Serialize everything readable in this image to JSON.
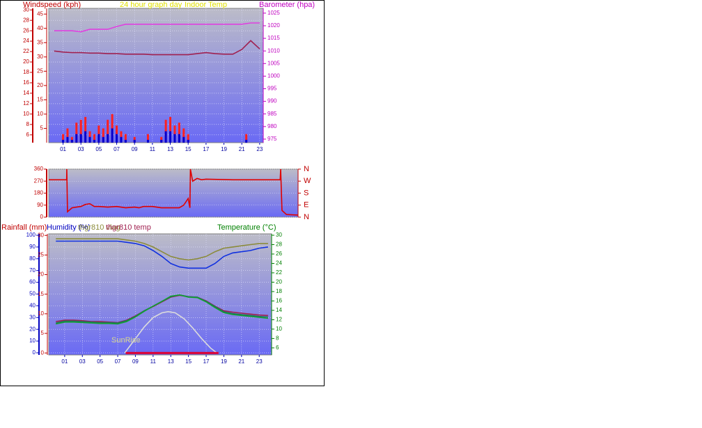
{
  "chart_data": [
    {
      "type": "combo",
      "title": "24 hour graph day",
      "xlim": [
        -0.6,
        23.4
      ],
      "xticks": [
        {
          "value": 1,
          "label": "01"
        },
        {
          "value": 3,
          "label": "03"
        },
        {
          "value": 5,
          "label": "05"
        },
        {
          "value": 7,
          "label": "07"
        },
        {
          "value": 9,
          "label": "09"
        },
        {
          "value": 11,
          "label": "11"
        },
        {
          "value": 13,
          "label": "13"
        },
        {
          "value": 15,
          "label": "15"
        },
        {
          "value": 17,
          "label": "17"
        },
        {
          "value": 19,
          "label": "19"
        },
        {
          "value": 21,
          "label": "21"
        },
        {
          "value": 23,
          "label": "23"
        }
      ],
      "grid": true,
      "axes": [
        {
          "label": "Windspeed (kph)",
          "color": "#c00000",
          "side": "left",
          "ylim": [
            4.5,
            30.3
          ],
          "yticks": [
            6,
            8,
            10,
            12,
            14,
            16,
            18,
            20,
            22,
            24,
            26,
            28,
            30
          ]
        },
        {
          "color": "#c00000",
          "side": "left",
          "ylim": [
            0,
            47
          ],
          "yticks": [
            5,
            10,
            15,
            20,
            25,
            30,
            35,
            40,
            45
          ]
        },
        {
          "label": "Barometer (hpa)",
          "color": "#c000c0",
          "side": "right",
          "ylim": [
            973.6,
            1026.9
          ],
          "yticks": [
            975,
            980,
            985,
            990,
            995,
            1000,
            1005,
            1010,
            1015,
            1020,
            1025
          ]
        }
      ],
      "series": [
        {
          "type": "bar",
          "color": "#ff2020",
          "axis": 1,
          "x": [
            0,
            0.5,
            1,
            1.5,
            2,
            2.5,
            3,
            3.5,
            4,
            4.5,
            5,
            5.5,
            6,
            6.5,
            7,
            7.5,
            8,
            8.5,
            9,
            9.5,
            10,
            10.5,
            11,
            11.5,
            12,
            12.5,
            13,
            13.5,
            14,
            14.5,
            15,
            15.5,
            16,
            16.5,
            17,
            17.5,
            18,
            18.5,
            19,
            19.5,
            20,
            20.5,
            21,
            21.5,
            22,
            22.5,
            23
          ],
          "values": [
            0,
            0,
            3,
            5,
            2,
            7,
            8,
            9,
            4,
            3,
            6,
            5,
            8,
            10,
            6,
            4,
            3,
            0,
            2,
            0,
            0,
            3,
            0,
            0,
            2,
            8,
            9,
            6,
            7,
            5,
            3,
            0,
            0,
            0,
            0,
            0,
            0,
            0,
            0,
            0,
            0,
            0,
            0,
            3,
            0,
            0,
            0
          ]
        },
        {
          "type": "bar",
          "color": "#0000d0",
          "axis": 1,
          "x": [
            0,
            0.5,
            1,
            1.5,
            2,
            2.5,
            3,
            3.5,
            4,
            4.5,
            5,
            5.5,
            6,
            6.5,
            7,
            7.5,
            8,
            8.5,
            9,
            9.5,
            10,
            10.5,
            11,
            11.5,
            12,
            12.5,
            13,
            13.5,
            14,
            14.5,
            15,
            15.5,
            16,
            16.5,
            17,
            17.5,
            18,
            18.5,
            19,
            19.5,
            20,
            20.5,
            21,
            21.5,
            22,
            22.5,
            23
          ],
          "values": [
            0,
            0,
            1,
            2,
            1,
            3,
            3,
            4,
            2,
            1,
            3,
            2,
            3,
            5,
            3,
            2,
            1,
            0,
            1,
            0,
            0,
            1,
            0,
            0,
            1,
            4,
            4,
            3,
            3,
            2,
            1,
            0,
            0,
            0,
            0,
            0,
            0,
            0,
            0,
            0,
            0,
            0,
            0,
            1,
            0,
            0,
            0
          ]
        },
        {
          "name": "Indoor Temp",
          "type": "line",
          "color": "#a02050",
          "axis": 0,
          "x": [
            0,
            1,
            2,
            3,
            4,
            5,
            6,
            7,
            8,
            9,
            10,
            11,
            12,
            13,
            14,
            15,
            16,
            17,
            18,
            19,
            20,
            21,
            22,
            23
          ],
          "values": [
            22.1,
            21.9,
            21.8,
            21.8,
            21.7,
            21.7,
            21.6,
            21.6,
            21.5,
            21.5,
            21.5,
            21.4,
            21.4,
            21.4,
            21.4,
            21.4,
            21.6,
            21.8,
            21.6,
            21.5,
            21.5,
            22.4,
            24.1,
            22.5
          ]
        },
        {
          "type": "line",
          "color": "#e040e0",
          "axis": 2,
          "x": [
            0,
            1,
            2,
            3,
            4,
            5,
            6,
            7,
            8,
            9,
            10,
            11,
            12,
            13,
            14,
            15,
            16,
            17,
            18,
            19,
            20,
            21,
            22,
            23
          ],
          "values": [
            1018,
            1018,
            1018,
            1017.6,
            1018.6,
            1018.6,
            1018.6,
            1019.7,
            1020.6,
            1020.6,
            1020.6,
            1020.6,
            1020.6,
            1020.6,
            1020.6,
            1020.6,
            1020.6,
            1020.6,
            1020.6,
            1020.6,
            1020.6,
            1020.6,
            1021.1,
            1021.1
          ]
        }
      ]
    },
    {
      "type": "combo",
      "xlim": [
        -0.6,
        27.3
      ],
      "grid": true,
      "axes": [
        {
          "color": "#c00000",
          "side": "left",
          "ylim": [
            0,
            360
          ],
          "yticks": [
            0,
            90,
            180,
            270,
            360
          ]
        },
        {
          "color": "#c00000",
          "side": "right",
          "ylim": [
            0,
            360
          ],
          "yticks": [
            {
              "value": 0,
              "label": "N"
            },
            {
              "value": 90,
              "label": "E"
            },
            {
              "value": 180,
              "label": "S"
            },
            {
              "value": 270,
              "label": "W"
            },
            {
              "value": 360,
              "label": "N"
            }
          ]
        }
      ],
      "series": [
        {
          "type": "line",
          "color": "#e00000",
          "axis": 0,
          "x": [
            -0.6,
            1.4,
            1.42,
            1.5,
            2,
            2.5,
            3,
            3.5,
            4,
            4.5,
            5,
            6,
            7,
            8,
            9,
            9.5,
            10,
            11,
            12,
            13,
            14,
            14.5,
            15,
            15.2,
            15.25,
            15.5,
            16,
            16.5,
            17,
            20,
            23,
            25.3,
            25.35,
            25.5,
            26,
            27.3
          ],
          "values": [
            280,
            280,
            360,
            40,
            70,
            75,
            80,
            95,
            100,
            80,
            80,
            75,
            80,
            70,
            75,
            70,
            80,
            80,
            70,
            70,
            70,
            90,
            140,
            70,
            360,
            270,
            290,
            280,
            285,
            280,
            280,
            280,
            360,
            50,
            20,
            15
          ]
        }
      ]
    },
    {
      "type": "combo",
      "annotation": "SunRise",
      "xlim": [
        -0.8,
        24.4
      ],
      "xticks": [
        {
          "value": 1,
          "label": "01"
        },
        {
          "value": 3,
          "label": "03"
        },
        {
          "value": 5,
          "label": "05"
        },
        {
          "value": 7,
          "label": "07"
        },
        {
          "value": 9,
          "label": "09"
        },
        {
          "value": 11,
          "label": "11"
        },
        {
          "value": 13,
          "label": "13"
        },
        {
          "value": 15,
          "label": "15"
        },
        {
          "value": 17,
          "label": "17"
        },
        {
          "value": 19,
          "label": "19"
        },
        {
          "value": 21,
          "label": "21"
        },
        {
          "value": 23,
          "label": "23"
        }
      ],
      "grid": true,
      "axes": [
        {
          "label": "Humidity (%)",
          "color": "#0000c0",
          "side": "left",
          "ylim": [
            -1.8,
            101.2
          ],
          "yticks": [
            0,
            10,
            20,
            30,
            40,
            50,
            60,
            70,
            80,
            90,
            100
          ]
        },
        {
          "label": "Rainfall (mm)",
          "color": "#c00000",
          "side": "left",
          "ylim": [
            -0.5,
            30.4
          ],
          "yticks": [
            0,
            5,
            10,
            15,
            20,
            25,
            30
          ]
        },
        {
          "label": "Temperature (°C)",
          "color": "#008000",
          "side": "right",
          "ylim": [
            4.5,
            30.3
          ],
          "yticks": [
            6,
            8,
            10,
            12,
            14,
            16,
            18,
            20,
            22,
            24,
            26,
            28,
            30
          ]
        }
      ],
      "series": [
        {
          "name": "thgr810 vlag",
          "type": "line",
          "color": "#8b8b3a",
          "axis": 0,
          "x": [
            0,
            1,
            2,
            3,
            4,
            5,
            6,
            7,
            8,
            9,
            10,
            11,
            12,
            13,
            14,
            15,
            16,
            17,
            18,
            19,
            20,
            21,
            22,
            23,
            24
          ],
          "values": [
            97,
            97,
            97,
            97,
            97,
            97,
            97,
            97,
            96,
            95,
            93,
            90,
            86,
            82,
            80,
            79,
            80,
            82,
            86,
            89,
            90,
            91,
            92,
            93,
            93
          ]
        },
        {
          "type": "line",
          "color": "#1030e0",
          "axis": 0,
          "x": [
            0,
            1,
            2,
            3,
            4,
            5,
            6,
            7,
            8,
            9,
            10,
            11,
            12,
            13,
            14,
            15,
            16,
            17,
            18,
            19,
            20,
            21,
            22,
            23,
            24
          ],
          "values": [
            95,
            95,
            95,
            95,
            95,
            95,
            95,
            95,
            94,
            93,
            91,
            87,
            82,
            76,
            73,
            72,
            72,
            72,
            76,
            82,
            85,
            86,
            87,
            89,
            90
          ]
        },
        {
          "name": "thgr810 temp",
          "type": "line",
          "color": "#a02050",
          "axis": 2,
          "x": [
            0,
            1,
            2,
            3,
            4,
            5,
            6,
            7,
            8,
            9,
            10,
            11,
            12,
            13,
            14,
            15,
            16,
            17,
            18,
            19,
            20,
            21,
            22,
            23,
            24
          ],
          "values": [
            11.6,
            11.9,
            11.9,
            11.8,
            11.6,
            11.6,
            11.5,
            11.4,
            11.9,
            12.8,
            13.9,
            14.8,
            15.8,
            16.8,
            17.2,
            16.9,
            16.8,
            16.0,
            14.9,
            13.9,
            13.6,
            13.4,
            13.2,
            13.0,
            12.9
          ]
        },
        {
          "type": "line",
          "color": "#207060",
          "axis": 2,
          "x": [
            0,
            1,
            2,
            3,
            4,
            5,
            6,
            7,
            8,
            9,
            10,
            11,
            12,
            13,
            14,
            15,
            16,
            17,
            18,
            19,
            20,
            21,
            22,
            23,
            24
          ],
          "values": [
            11.3,
            11.7,
            11.7,
            11.6,
            11.5,
            11.4,
            11.4,
            11.3,
            11.8,
            12.7,
            13.9,
            14.9,
            15.9,
            16.9,
            17.3,
            16.9,
            16.8,
            15.9,
            14.8,
            13.7,
            13.3,
            13.1,
            12.9,
            12.7,
            12.6
          ]
        },
        {
          "type": "line",
          "color": "#10a030",
          "axis": 2,
          "x": [
            0,
            1,
            2,
            3,
            4,
            5,
            6,
            7,
            8,
            9,
            10,
            11,
            12,
            13,
            14,
            15,
            16,
            17,
            18,
            19,
            20,
            21,
            22,
            23,
            24
          ],
          "values": [
            11.1,
            11.5,
            11.5,
            11.4,
            11.3,
            11.2,
            11.2,
            11.1,
            11.6,
            12.6,
            13.8,
            14.9,
            15.9,
            17.0,
            17.3,
            16.8,
            16.7,
            15.8,
            14.6,
            13.5,
            13.1,
            12.9,
            12.7,
            12.5,
            12.3
          ]
        },
        {
          "type": "line",
          "color": "#dcdcdc",
          "axis": 0,
          "x": [
            7.8,
            9,
            10,
            11,
            12,
            12.7,
            13.5,
            14.5,
            15.5,
            16.5,
            17.5,
            18.2
          ],
          "values": [
            0,
            12,
            22,
            30,
            34,
            35,
            34,
            29,
            21,
            12,
            4,
            0
          ]
        },
        {
          "type": "line",
          "color": "#e00030",
          "axis": 1,
          "width": 3,
          "x": [
            7.9,
            18.4
          ],
          "values": [
            0,
            0
          ]
        }
      ]
    }
  ]
}
